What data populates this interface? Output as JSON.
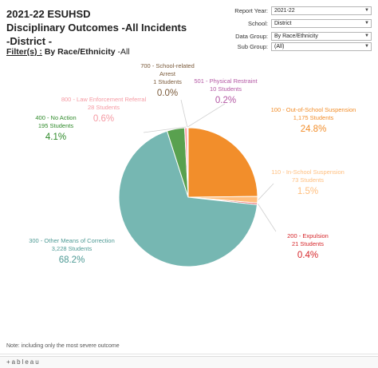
{
  "title": {
    "line1": "2021-22 ESUHSD",
    "line2": "Disciplinary Outcomes -All Incidents",
    "line3": "-District -"
  },
  "filter": {
    "label": "Filter(s) :",
    "value": "By Race/Ethnicity",
    "suffix": "-All"
  },
  "controls": [
    {
      "label": "Report Year:",
      "value": "2021-22"
    },
    {
      "label": "School:",
      "value": "District"
    },
    {
      "label": "Data Group:",
      "value": "By Race/Ethnicity"
    },
    {
      "label": "Sub Group:",
      "value": "(All)"
    }
  ],
  "chart_data": {
    "type": "pie",
    "slices": [
      {
        "name": "100 - Out-of-School Suspension",
        "count": "1,175 Students",
        "percent": "24.8%",
        "value": 24.8,
        "color": "#f28e2b",
        "label_color": "#f28e2b"
      },
      {
        "name": "110 - In-School Suspension",
        "count": "73 Students",
        "percent": "1.5%",
        "value": 1.5,
        "color": "#ffbe7d",
        "label_color": "#ffbe7d"
      },
      {
        "name": "200 - Expulsion",
        "count": "21 Students",
        "percent": "0.4%",
        "value": 0.4,
        "color": "#e15759",
        "label_color": "#d6272b"
      },
      {
        "name": "300 - Other Means of Correction",
        "count": "3,228 Students",
        "percent": "68.2%",
        "value": 68.2,
        "color": "#76b7b2",
        "label_color": "#4e9a95"
      },
      {
        "name": "400 - No Action",
        "count": "195 Students",
        "percent": "4.1%",
        "value": 4.1,
        "color": "#59a14f",
        "label_color": "#2f8a2a"
      },
      {
        "name": "800 - Law Enforcement Referral",
        "count": "28 Students",
        "percent": "0.6%",
        "value": 0.6,
        "color": "#ff9da7",
        "label_color": "#f59aa3"
      },
      {
        "name": "700 - School-related Arrest",
        "count": "1 Students",
        "percent": "0.0%",
        "value": 0.02,
        "color": "#9c755f",
        "label_color": "#7a5a3a"
      },
      {
        "name": "501 - Physical Restraint",
        "count": "10 Students",
        "percent": "0.2%",
        "value": 0.2,
        "color": "#b07aa1",
        "label_color": "#b356a3"
      }
    ]
  },
  "note": "Note: including only the most severe outcome",
  "footer": {
    "logo_text": "+ableau"
  }
}
